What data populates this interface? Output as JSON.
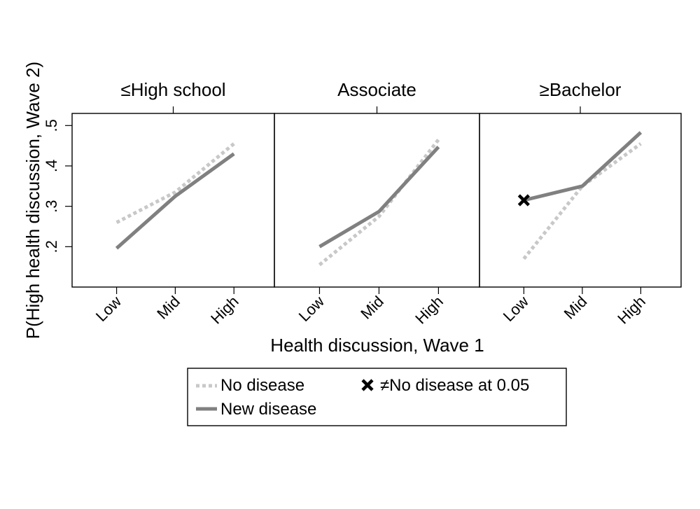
{
  "chart_data": {
    "type": "line",
    "ylabel": "P(High health discussion, Wave 2)",
    "xlabel": "Health discussion, Wave 1",
    "x": [
      "Low",
      "Mid",
      "High"
    ],
    "yticks": [
      ".2",
      ".3",
      ".4",
      ".5"
    ],
    "ylim": [
      0.1,
      0.53
    ],
    "colors": {
      "no_disease": "#c8c8c8",
      "new_disease": "#808080",
      "marker": "#000000"
    },
    "panels": [
      {
        "title": "≤High school",
        "series": [
          {
            "name": "No disease",
            "values": [
              0.26,
              0.335,
              0.455
            ]
          },
          {
            "name": "New disease",
            "values": [
              0.196,
              0.325,
              0.43
            ]
          }
        ],
        "significant": []
      },
      {
        "title": "Associate",
        "series": [
          {
            "name": "No disease",
            "values": [
              0.155,
              0.275,
              0.465
            ]
          },
          {
            "name": "New disease",
            "values": [
              0.2,
              0.287,
              0.447
            ]
          }
        ],
        "significant": []
      },
      {
        "title": "≥Bachelor",
        "series": [
          {
            "name": "No disease",
            "values": [
              0.17,
              0.35,
              0.455
            ]
          },
          {
            "name": "New disease",
            "values": [
              0.315,
              0.35,
              0.483
            ]
          }
        ],
        "significant": [
          {
            "series": "New disease",
            "x": "Low"
          }
        ]
      }
    ],
    "legend": {
      "position": "bottom",
      "entries": [
        "No disease",
        "New disease",
        "≠No disease at 0.05"
      ]
    }
  }
}
